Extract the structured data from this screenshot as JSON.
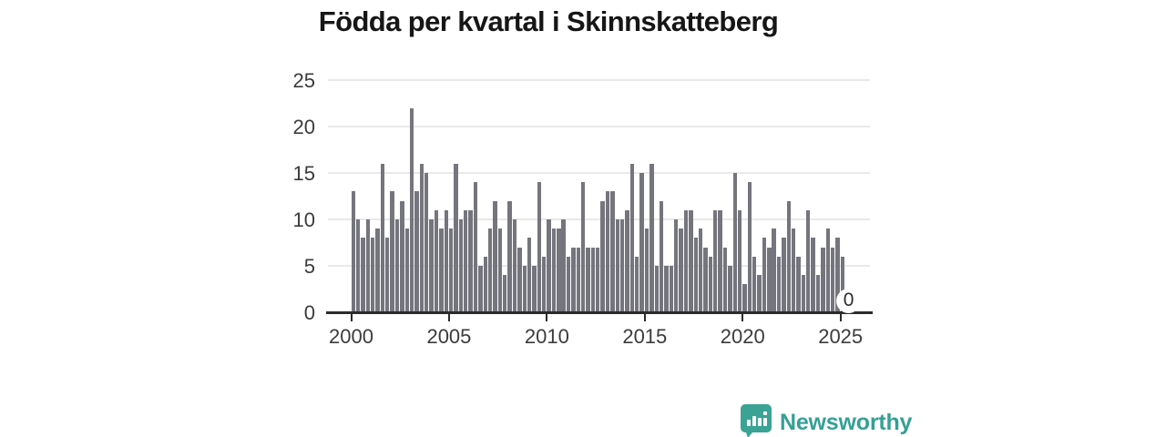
{
  "title": "Födda per kvartal i Skinnskatteberg",
  "chart_data": {
    "type": "bar",
    "title": "Födda per kvartal i Skinnskatteberg",
    "x_unit": "quarter",
    "x_start": "2000-Q1",
    "x_end": "2025-Q2",
    "values": [
      13,
      10,
      8,
      10,
      8,
      9,
      16,
      8,
      13,
      10,
      12,
      9,
      22,
      13,
      16,
      15,
      10,
      11,
      9,
      11,
      9,
      16,
      10,
      11,
      11,
      14,
      5,
      6,
      9,
      12,
      9,
      4,
      12,
      10,
      7,
      5,
      8,
      5,
      14,
      6,
      10,
      9,
      9,
      10,
      6,
      7,
      7,
      14,
      7,
      7,
      7,
      12,
      13,
      13,
      10,
      10,
      11,
      16,
      6,
      15,
      9,
      16,
      5,
      12,
      5,
      5,
      10,
      9,
      11,
      11,
      8,
      9,
      7,
      6,
      11,
      11,
      7,
      5,
      15,
      11,
      3,
      14,
      6,
      4,
      8,
      7,
      9,
      6,
      8,
      12,
      9,
      6,
      4,
      11,
      8,
      4,
      7,
      9,
      7,
      8,
      6,
      0
    ],
    "xticks": [
      "2000",
      "2005",
      "2010",
      "2015",
      "2020",
      "2025"
    ],
    "yticks": [
      "0",
      "5",
      "10",
      "15",
      "20",
      "25"
    ],
    "ylim": [
      0,
      25
    ],
    "grid": "horizontal",
    "legend": "none",
    "bar_color": "#75757d",
    "axis_color": "#2b2b2b",
    "gridline_color": "#e9e9e9",
    "tick_label_color": "#3b3b3b",
    "annotations": [
      {
        "point": "2025-Q2",
        "label": "0"
      }
    ]
  },
  "annotation_zero": "0",
  "branding": {
    "logo_text": "Newsworthy",
    "logo_color": "#35a095",
    "logo_icon": "bar-chart-speech-bubble-icon"
  }
}
